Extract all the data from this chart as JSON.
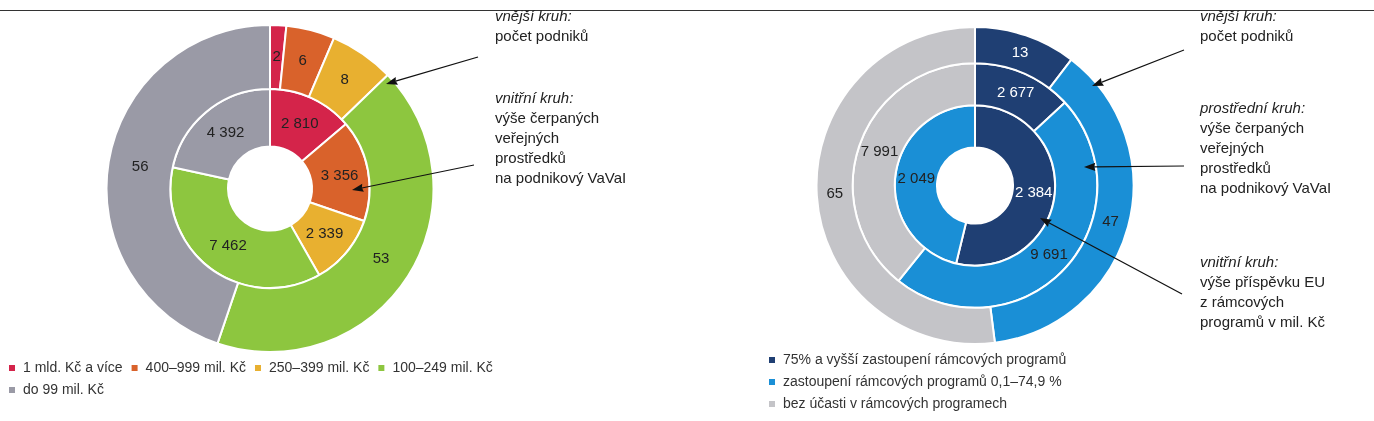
{
  "chart_data": [
    {
      "type": "donut",
      "categories": [
        "1 mld. Kč a více",
        "400–999 mil. Kč",
        "250–399 mil. Kč",
        "100–249 mil. Kč",
        "do 99 mil. Kč"
      ],
      "colors": [
        "#d4244a",
        "#d9622b",
        "#e8b030",
        "#8dc63f",
        "#9a9aa6"
      ],
      "series": [
        {
          "values": [
            2,
            6,
            8,
            53,
            56
          ]
        },
        {
          "values": [
            2810,
            3356,
            2339,
            7462,
            4392
          ]
        }
      ],
      "data_labels": true,
      "legend": "bottom",
      "annotations": [
        "vnější kruh:\npočet podniků",
        "vnitřní kruh:\nvýše čerpaných\nveřejných\nprostředků\nna podnikový VaVaI"
      ]
    },
    {
      "type": "donut",
      "categories": [
        "75% a vyšší zastoupení rámcových programů",
        "zastoupení rámcových programů 0,1–74,9 %",
        "bez účasti v rámcových programech"
      ],
      "colors": [
        "#1f3f73",
        "#1a8fd6",
        "#c4c4c8"
      ],
      "series": [
        {
          "values": [
            13,
            47,
            65
          ]
        },
        {
          "values": [
            2677,
            9691,
            7991
          ]
        },
        {
          "values": [
            2384,
            2049,
            null
          ]
        }
      ],
      "data_labels": true,
      "legend": "bottom",
      "annotations": [
        "vnější kruh:\npočet podniků",
        "prostřední kruh:\nvýše čerpaných\nveřejných\nprostředků\nna podnikový VaVaI",
        "vnitřní kruh:\nvýše příspěvku EU\nz rámcových\nprogramů v mil. Kč"
      ]
    }
  ]
}
